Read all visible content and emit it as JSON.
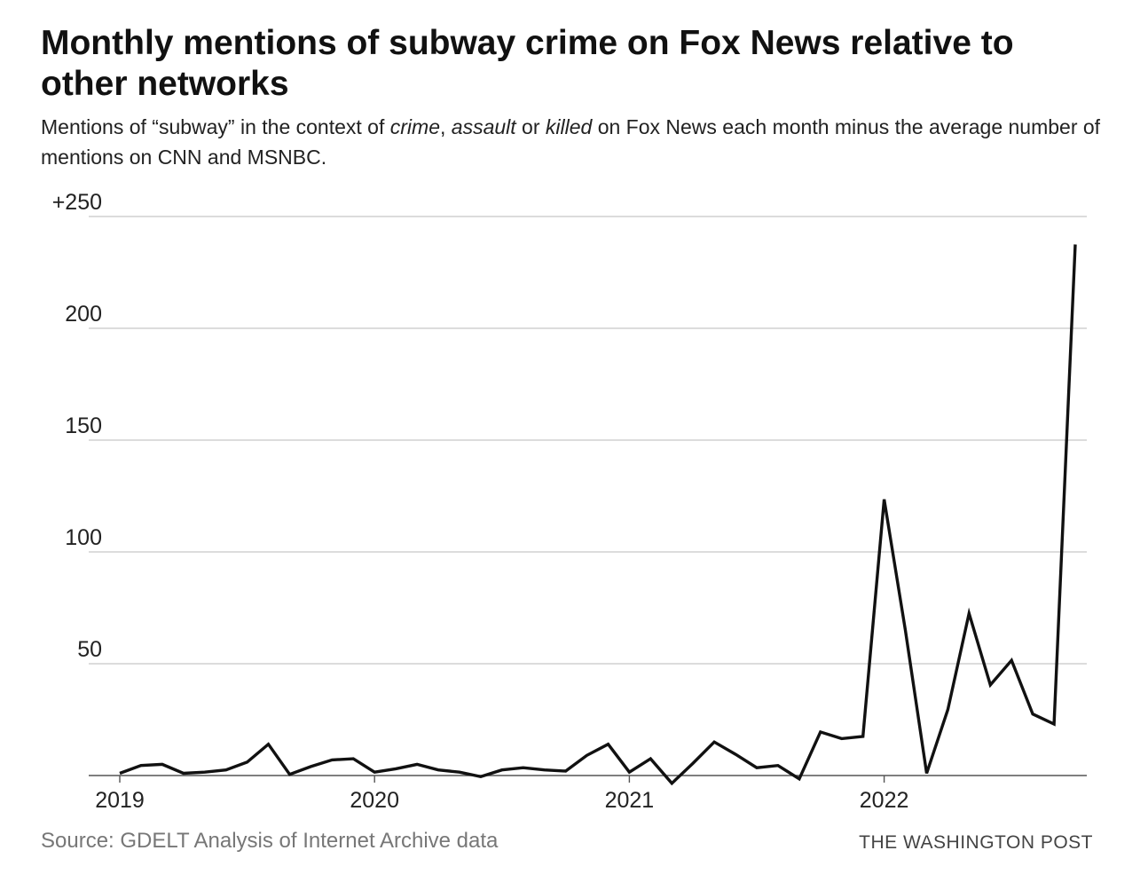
{
  "title": "Monthly mentions of subway crime on Fox News relative to other networks",
  "subtitle": {
    "part1": "Mentions of “subway” in the context of ",
    "term1": "crime",
    "sep1": ", ",
    "term2": "assault",
    "sep2": " or ",
    "term3": "killed",
    "part2": " on Fox News each month minus the average number of mentions on CNN and MSNBC."
  },
  "source": "Source: GDELT Analysis of Internet Archive data",
  "credit": "THE WASHINGTON POST",
  "chart_data": {
    "type": "line",
    "title": "Monthly mentions of subway crime on Fox News relative to other networks",
    "xlabel": "",
    "ylabel": "",
    "ylim": [
      0,
      250
    ],
    "xlim": [
      "2019-01",
      "2022-10"
    ],
    "grid": true,
    "line_color": "#111111",
    "grid_color": "#c8c8c8",
    "y_ticks": [
      {
        "value": 250,
        "label": "+250"
      },
      {
        "value": 200,
        "label": "200"
      },
      {
        "value": 150,
        "label": "150"
      },
      {
        "value": 100,
        "label": "100"
      },
      {
        "value": 50,
        "label": "50"
      }
    ],
    "x_ticks": [
      {
        "value": "2019-01",
        "label": "2019"
      },
      {
        "value": "2020-01",
        "label": "2020"
      },
      {
        "value": "2021-01",
        "label": "2021"
      },
      {
        "value": "2022-01",
        "label": "2022"
      }
    ],
    "series": [
      {
        "name": "",
        "points": [
          {
            "x": "2019-01",
            "y": 1
          },
          {
            "x": "2019-02",
            "y": 4.5
          },
          {
            "x": "2019-03",
            "y": 5
          },
          {
            "x": "2019-04",
            "y": 1
          },
          {
            "x": "2019-05",
            "y": 1.5
          },
          {
            "x": "2019-06",
            "y": 2.5
          },
          {
            "x": "2019-07",
            "y": 6
          },
          {
            "x": "2019-08",
            "y": 14
          },
          {
            "x": "2019-09",
            "y": 0.5
          },
          {
            "x": "2019-10",
            "y": 4
          },
          {
            "x": "2019-11",
            "y": 7
          },
          {
            "x": "2019-12",
            "y": 7.5
          },
          {
            "x": "2020-01",
            "y": 1.5
          },
          {
            "x": "2020-02",
            "y": 3
          },
          {
            "x": "2020-03",
            "y": 5
          },
          {
            "x": "2020-04",
            "y": 2.5
          },
          {
            "x": "2020-05",
            "y": 1.5
          },
          {
            "x": "2020-06",
            "y": -0.5
          },
          {
            "x": "2020-07",
            "y": 2.5
          },
          {
            "x": "2020-08",
            "y": 3.5
          },
          {
            "x": "2020-09",
            "y": 2.5
          },
          {
            "x": "2020-10",
            "y": 2
          },
          {
            "x": "2020-11",
            "y": 9
          },
          {
            "x": "2020-12",
            "y": 14
          },
          {
            "x": "2021-01",
            "y": 1.5
          },
          {
            "x": "2021-02",
            "y": 7.5
          },
          {
            "x": "2021-03",
            "y": -3.5
          },
          {
            "x": "2021-04",
            "y": 5.5
          },
          {
            "x": "2021-05",
            "y": 15
          },
          {
            "x": "2021-06",
            "y": 9.5
          },
          {
            "x": "2021-07",
            "y": 3.5
          },
          {
            "x": "2021-08",
            "y": 4.5
          },
          {
            "x": "2021-09",
            "y": -1.5
          },
          {
            "x": "2021-10",
            "y": 19.5
          },
          {
            "x": "2021-11",
            "y": 16.5
          },
          {
            "x": "2021-12",
            "y": 17.5
          },
          {
            "x": "2022-01",
            "y": 123.5
          },
          {
            "x": "2022-02",
            "y": 65
          },
          {
            "x": "2022-03",
            "y": 1
          },
          {
            "x": "2022-04",
            "y": 29.5
          },
          {
            "x": "2022-05",
            "y": 72.5
          },
          {
            "x": "2022-06",
            "y": 40.5
          },
          {
            "x": "2022-07",
            "y": 51.5
          },
          {
            "x": "2022-08",
            "y": 27.5
          },
          {
            "x": "2022-09",
            "y": 23
          },
          {
            "x": "2022-10",
            "y": 237.5
          }
        ]
      }
    ]
  }
}
